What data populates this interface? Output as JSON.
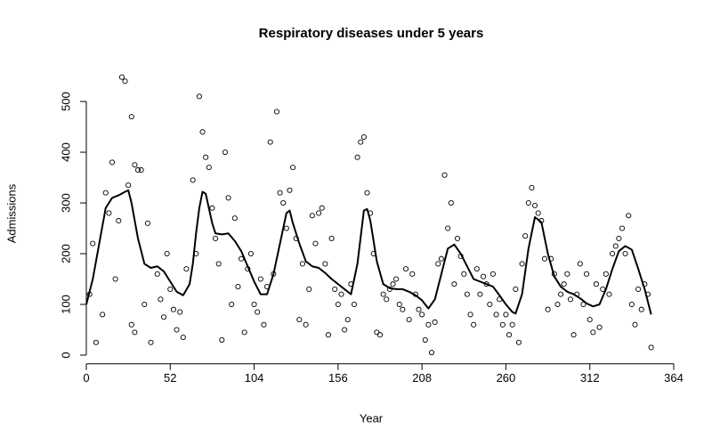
{
  "chart_data": {
    "type": "scatter",
    "title": "Respiratory diseases under 5 years",
    "x_label": "Year",
    "y_label": "Admissions",
    "xlim": [
      0,
      364
    ],
    "ylim": [
      -17,
      572
    ],
    "xticks": [
      0,
      52,
      104,
      156,
      208,
      260,
      312,
      364
    ],
    "yticks": [
      0,
      100,
      200,
      300,
      400,
      500
    ],
    "color": "#000000",
    "points": {
      "x": [
        2,
        4,
        6,
        10,
        12,
        14,
        16,
        18,
        20,
        22,
        24,
        26,
        28,
        28,
        30,
        30,
        32,
        34,
        36,
        38,
        40,
        44,
        46,
        48,
        50,
        52,
        54,
        56,
        58,
        60,
        62,
        66,
        68,
        70,
        72,
        74,
        76,
        78,
        80,
        82,
        84,
        86,
        88,
        90,
        92,
        94,
        96,
        98,
        100,
        102,
        104,
        106,
        108,
        110,
        112,
        114,
        116,
        118,
        120,
        122,
        124,
        126,
        128,
        130,
        132,
        134,
        136,
        138,
        140,
        142,
        144,
        146,
        148,
        150,
        152,
        154,
        156,
        158,
        160,
        162,
        164,
        166,
        168,
        170,
        172,
        174,
        176,
        178,
        180,
        182,
        184,
        186,
        188,
        190,
        192,
        194,
        196,
        198,
        200,
        202,
        204,
        206,
        208,
        210,
        212,
        214,
        216,
        218,
        220,
        222,
        224,
        226,
        228,
        230,
        232,
        234,
        236,
        238,
        240,
        242,
        244,
        246,
        248,
        250,
        252,
        254,
        256,
        258,
        260,
        262,
        264,
        266,
        268,
        270,
        272,
        274,
        276,
        278,
        280,
        282,
        284,
        286,
        288,
        290,
        292,
        294,
        296,
        298,
        300,
        302,
        304,
        306,
        308,
        310,
        312,
        314,
        316,
        318,
        320,
        322,
        324,
        326,
        328,
        330,
        332,
        334,
        336,
        338,
        340,
        342,
        344,
        346,
        348,
        350
      ],
      "values": [
        120,
        220,
        25,
        80,
        320,
        280,
        380,
        150,
        265,
        548,
        540,
        335,
        470,
        60,
        375,
        45,
        365,
        365,
        100,
        260,
        25,
        160,
        110,
        75,
        200,
        130,
        90,
        50,
        85,
        35,
        170,
        345,
        200,
        510,
        440,
        390,
        370,
        290,
        230,
        180,
        30,
        400,
        310,
        100,
        270,
        135,
        190,
        45,
        170,
        200,
        100,
        85,
        150,
        60,
        135,
        420,
        160,
        480,
        320,
        300,
        250,
        325,
        370,
        230,
        70,
        180,
        60,
        130,
        275,
        220,
        280,
        290,
        180,
        40,
        230,
        130,
        100,
        120,
        50,
        70,
        140,
        100,
        390,
        420,
        430,
        320,
        280,
        200,
        45,
        40,
        120,
        110,
        130,
        140,
        150,
        100,
        90,
        170,
        70,
        160,
        120,
        90,
        80,
        30,
        60,
        5,
        65,
        180,
        190,
        355,
        250,
        300,
        140,
        230,
        195,
        160,
        120,
        80,
        60,
        170,
        120,
        155,
        140,
        100,
        160,
        80,
        110,
        60,
        80,
        40,
        60,
        130,
        25,
        180,
        235,
        300,
        330,
        295,
        280,
        265,
        190,
        90,
        190,
        160,
        100,
        120,
        140,
        160,
        110,
        40,
        120,
        180,
        100,
        160,
        70,
        45,
        140,
        55,
        130,
        160,
        120,
        200,
        215,
        230,
        250,
        200,
        275,
        100,
        60,
        130,
        90,
        140,
        120,
        15
      ]
    },
    "line": {
      "x": [
        0,
        4,
        8,
        12,
        16,
        20,
        24,
        26,
        28,
        32,
        36,
        40,
        44,
        48,
        52,
        56,
        60,
        64,
        66,
        68,
        70,
        72,
        74,
        78,
        80,
        84,
        88,
        92,
        96,
        100,
        104,
        108,
        112,
        116,
        120,
        124,
        126,
        128,
        132,
        136,
        140,
        144,
        148,
        152,
        156,
        160,
        164,
        168,
        172,
        174,
        176,
        180,
        184,
        188,
        192,
        196,
        200,
        204,
        208,
        212,
        216,
        220,
        224,
        228,
        232,
        236,
        240,
        244,
        248,
        252,
        256,
        260,
        264,
        266,
        270,
        274,
        278,
        282,
        286,
        290,
        294,
        298,
        302,
        306,
        310,
        314,
        318,
        322,
        326,
        330,
        334,
        338,
        342,
        346,
        350
      ],
      "values": [
        100,
        150,
        220,
        290,
        310,
        315,
        322,
        325,
        300,
        230,
        180,
        172,
        175,
        165,
        145,
        125,
        118,
        140,
        180,
        240,
        290,
        322,
        318,
        260,
        240,
        238,
        240,
        225,
        205,
        175,
        145,
        120,
        120,
        160,
        220,
        280,
        285,
        260,
        220,
        185,
        175,
        172,
        162,
        150,
        140,
        130,
        120,
        180,
        285,
        288,
        265,
        185,
        140,
        132,
        130,
        130,
        125,
        118,
        108,
        92,
        110,
        160,
        210,
        218,
        200,
        175,
        150,
        145,
        140,
        135,
        118,
        100,
        85,
        82,
        120,
        210,
        272,
        262,
        200,
        155,
        135,
        125,
        120,
        112,
        102,
        96,
        100,
        130,
        170,
        205,
        215,
        208,
        170,
        130,
        80
      ]
    }
  }
}
